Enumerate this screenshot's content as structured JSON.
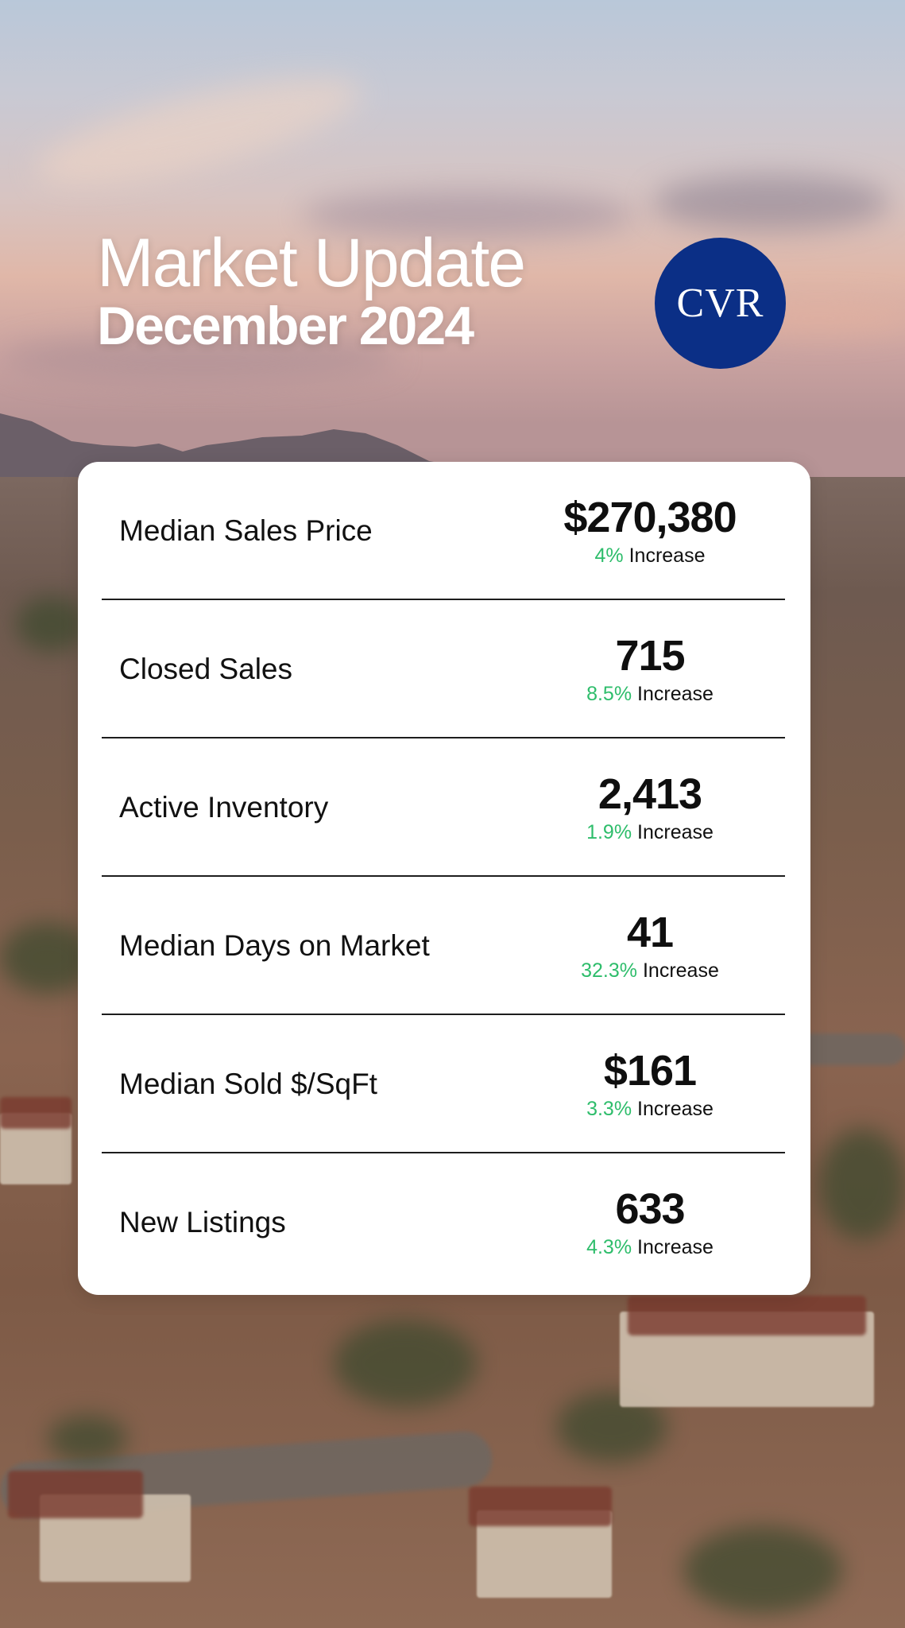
{
  "header": {
    "title": "Market Update",
    "subtitle": "December 2024"
  },
  "logo": {
    "text": "CVR",
    "color": "#0b2f86"
  },
  "colors": {
    "increase": "#2ebd6b",
    "card_background": "#ffffff",
    "divider": "#1d1d1d"
  },
  "stats": [
    {
      "label": "Median Sales Price",
      "value": "$270,380",
      "change_pct": "4%",
      "change_word": "Increase"
    },
    {
      "label": "Closed Sales",
      "value": "715",
      "change_pct": "8.5%",
      "change_word": "Increase"
    },
    {
      "label": "Active Inventory",
      "value": "2,413",
      "change_pct": "1.9%",
      "change_word": "Increase"
    },
    {
      "label": "Median Days on Market",
      "value": "41",
      "change_pct": "32.3%",
      "change_word": "Increase"
    },
    {
      "label": "Median Sold $/SqFt",
      "value": "$161",
      "change_pct": "3.3%",
      "change_word": "Increase"
    },
    {
      "label": "New Listings",
      "value": "633",
      "change_pct": "4.3%",
      "change_word": "Increase"
    }
  ]
}
